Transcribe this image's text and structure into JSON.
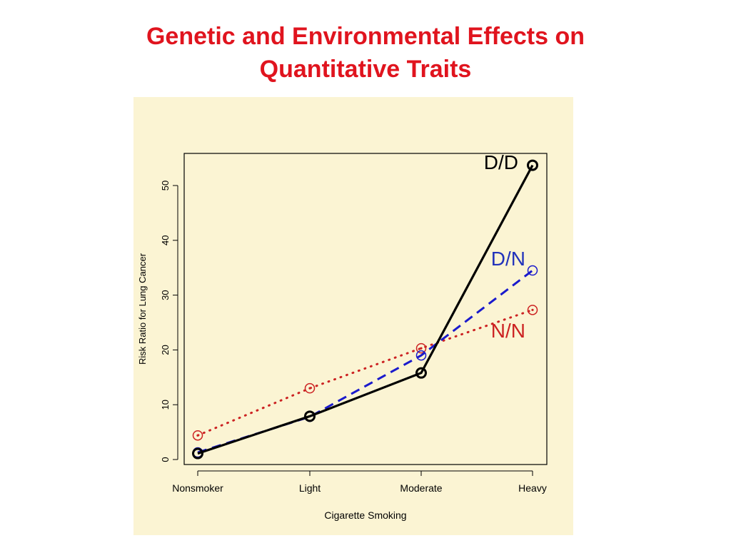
{
  "slide": {
    "title_line1": "Genetic and Environmental Effects  on",
    "title_line2": "Quantitative  Traits",
    "title_color": "#e0141e",
    "panel_background": "#fbf4d3"
  },
  "chart_data": {
    "type": "line",
    "xlabel": "Cigarette Smoking",
    "ylabel": "Risk Ratio for Lung Cancer",
    "categories": [
      "Nonsmoker",
      "Light",
      "Moderate",
      "Heavy"
    ],
    "ylim": [
      0,
      55
    ],
    "yticks": [
      0,
      10,
      20,
      30,
      40,
      50
    ],
    "grid": false,
    "series": [
      {
        "name": "D/D",
        "values": [
          1.1,
          7.9,
          15.8,
          53.7
        ],
        "color": "#000000",
        "dash": "solid",
        "label_color": "#000000"
      },
      {
        "name": "D/N",
        "values": [
          1.3,
          7.8,
          19.0,
          34.5
        ],
        "color": "#1a1acc",
        "dash": "dashed",
        "label_color": "#2233bb"
      },
      {
        "name": "N/N",
        "values": [
          4.4,
          13.0,
          20.3,
          27.3
        ],
        "color": "#cc2222",
        "dash": "dotted",
        "label_color": "#cc2222"
      }
    ]
  }
}
